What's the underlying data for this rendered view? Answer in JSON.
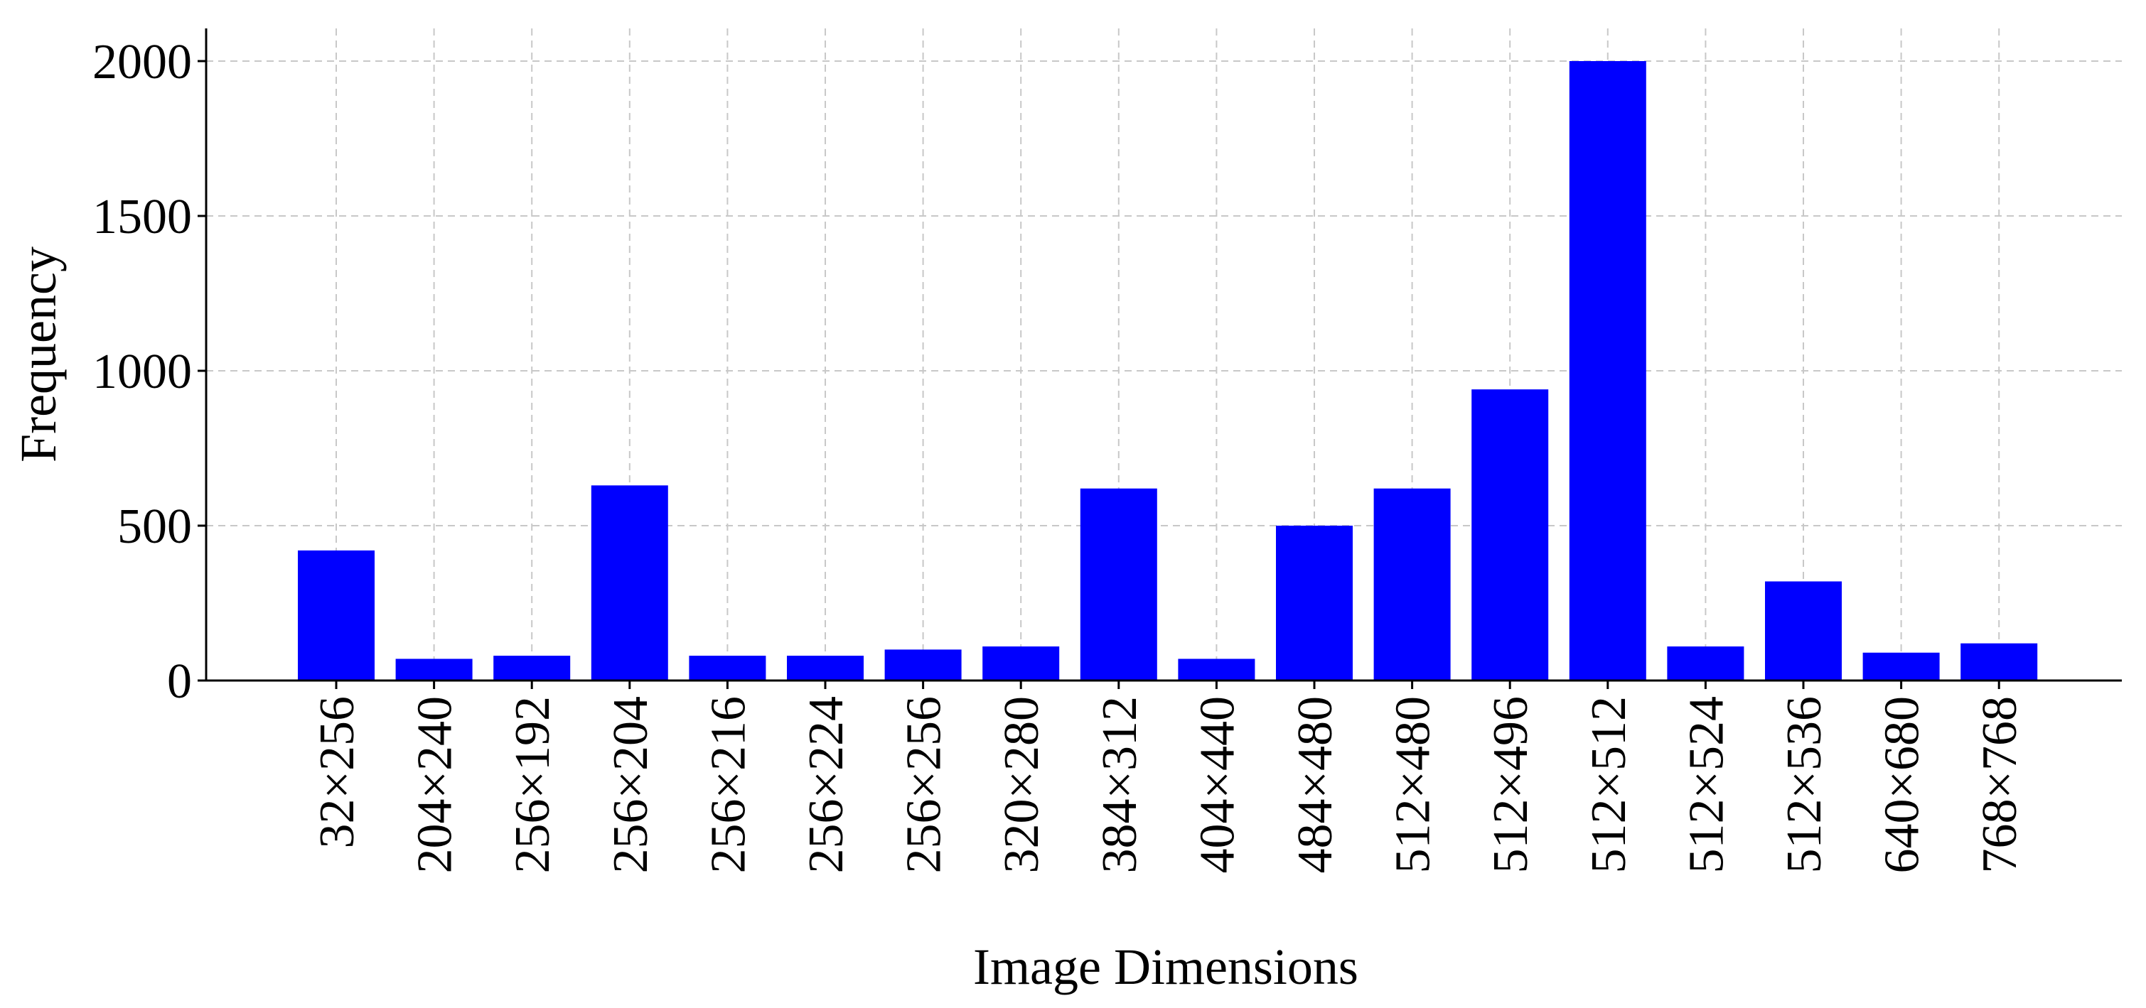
{
  "chart_data": {
    "type": "bar",
    "title": "",
    "xlabel": "Image Dimensions",
    "ylabel": "Frequency",
    "categories": [
      "32×256",
      "204×240",
      "256×192",
      "256×204",
      "256×216",
      "256×224",
      "256×256",
      "320×280",
      "384×312",
      "404×440",
      "484×480",
      "512×480",
      "512×496",
      "512×512",
      "512×524",
      "512×536",
      "640×680",
      "768×768"
    ],
    "values": [
      420,
      70,
      80,
      630,
      80,
      80,
      100,
      110,
      620,
      70,
      500,
      620,
      940,
      2000,
      110,
      320,
      90,
      120
    ],
    "ylim": [
      0,
      2100
    ],
    "yticks": [
      0,
      500,
      1000,
      1500,
      2000
    ],
    "grid": true,
    "bar_color": "#0000ff"
  }
}
